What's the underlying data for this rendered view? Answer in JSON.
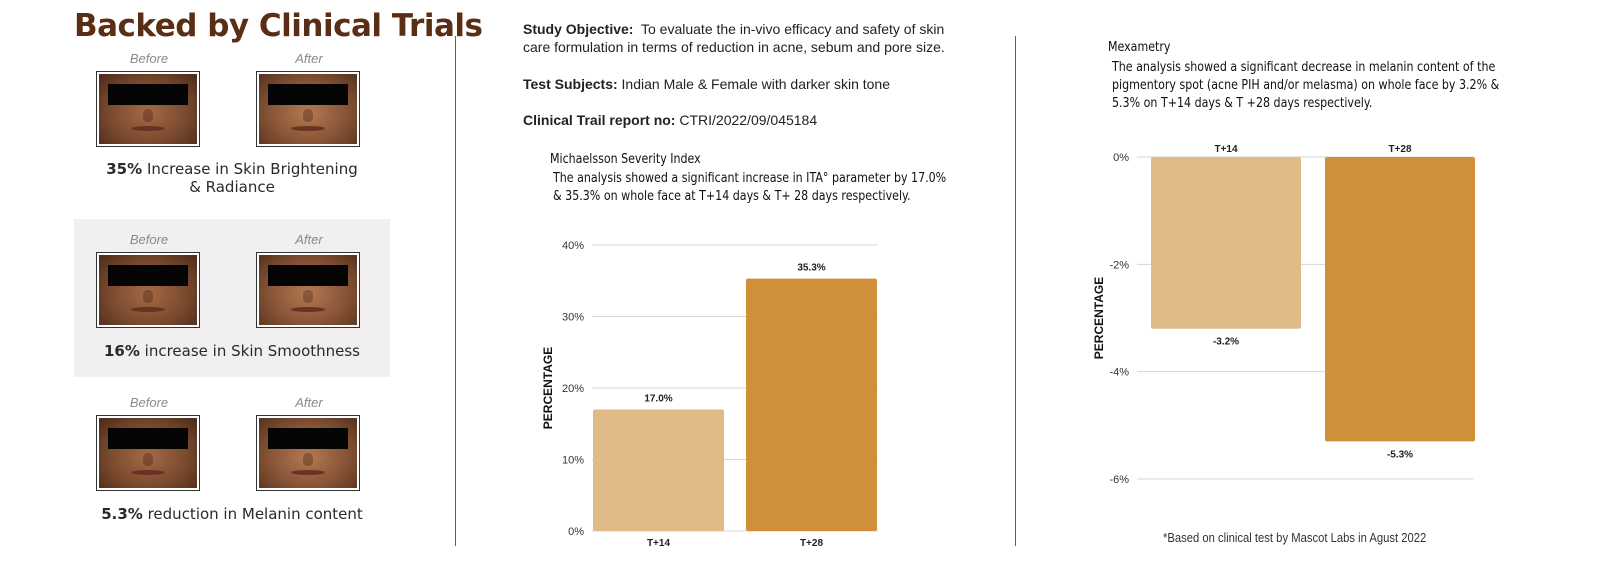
{
  "headline": "Backed by Clinical Trials",
  "results": [
    {
      "before": "Before",
      "after": "After",
      "highlight": "35%",
      "text": "Increase in Skin Brightening",
      "text2": "& Radiance"
    },
    {
      "before": "Before",
      "after": "After",
      "highlight": "16%",
      "text": "increase in Skin Smoothness"
    },
    {
      "before": "Before",
      "after": "After",
      "highlight": "5.3%",
      "text": "reduction in Melanin content"
    }
  ],
  "study": {
    "objective_label": "Study Objective:",
    "objective_line1": "To evaluate the in-vivo efficacy and safety of skin",
    "objective_line2": "care formulation in terms of reduction in acne, sebum and pore size.",
    "subjects_label": "Test Subjects:",
    "subjects": "Indian Male & Female with darker skin tone",
    "report_label": "Clinical Trail report no:",
    "report": "CTRI/2022/09/045184"
  },
  "chart_data": [
    {
      "type": "bar",
      "title": "Michaelsson Severity Index",
      "description_line1": "The analysis showed a significant increase in ITA° parameter by 17.0%",
      "description_line2": "& 35.3% on whole face at T+14 days & T+ 28 days respectively.",
      "ylabel": "PERCENTAGE",
      "categories": [
        "T+14",
        "T+28"
      ],
      "values": [
        17.0,
        35.3
      ],
      "data_labels": [
        "17.0%",
        "35.3%"
      ],
      "yticks": [
        0,
        10,
        20,
        30,
        40
      ],
      "ytick_labels": [
        "0%",
        "10%",
        "20%",
        "30%",
        "40%"
      ],
      "ylim": [
        0,
        40
      ],
      "grid": true,
      "colors": [
        "#e0bb88",
        "#cf9039"
      ]
    },
    {
      "type": "bar",
      "title": "Mexametry",
      "description_line1": "The analysis showed a significant decrease in melanin content of the",
      "description_line2": "pigmentory spot (acne PIH and/or melasma) on whole face by 3.2% &",
      "description_line3": "5.3% on T+14 days & T +28 days respectively.",
      "ylabel": "PERCENTAGE",
      "categories": [
        "T+14",
        "T+28"
      ],
      "values": [
        -3.2,
        -5.3
      ],
      "data_labels": [
        "-3.2%",
        "-5.3%"
      ],
      "yticks": [
        0,
        -2,
        -4,
        -6
      ],
      "ytick_labels": [
        "0%",
        "-2%",
        "-4%",
        "-6%"
      ],
      "ylim": [
        -6,
        0
      ],
      "grid": true,
      "colors": [
        "#e0bb88",
        "#cf9039"
      ]
    }
  ],
  "footnote": "*Based on clinical test by Mascot Labs in Agust 2022"
}
